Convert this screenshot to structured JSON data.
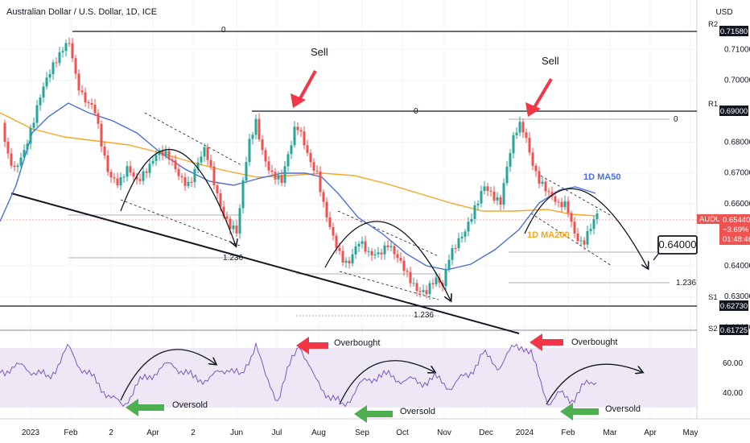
{
  "title": "Australian Dollar / U.S. Dollar, 1D, ICE",
  "currency_label": "USD",
  "chart_data": {
    "type": "candlestick",
    "symbol": "AUDUSD",
    "price_axis": {
      "min": 0.612,
      "max": 0.72,
      "ticks": [
        "0.71000",
        "0.70000",
        "0.68000",
        "0.67000",
        "0.66000",
        "0.64000",
        "0.63000",
        "0.62000"
      ]
    },
    "time_axis_labels": [
      "2023",
      "Feb",
      "2",
      "Apr",
      "2",
      "Jun",
      "Jul",
      "Aug",
      "Sep",
      "Oct",
      "Nov",
      "Dec",
      "2024",
      "Feb",
      "Mar",
      "Apr",
      "May"
    ],
    "key_levels": [
      {
        "name": "R2",
        "price": "0.71580",
        "fib_label": "0"
      },
      {
        "name": "R1",
        "price": "0.69000",
        "fib_label": "0"
      },
      {
        "name": "S1",
        "price": "0.62730"
      },
      {
        "name": "S2",
        "price": "0.61725"
      }
    ],
    "fib_extension_labels": [
      "1.236",
      "1.236",
      "1.236",
      "0"
    ],
    "moving_averages": [
      {
        "name": "1D MA50",
        "color": "#4a6fd6"
      },
      {
        "name": "1D MA200",
        "color": "#f5a623"
      }
    ],
    "current_price": {
      "symbol": "AUDUSD",
      "price": "0.65440",
      "change": "−3.69%",
      "countdown": "01:48:46"
    },
    "target": "0.64000",
    "price_annotations": [
      "Sell",
      "Sell"
    ],
    "rsi": {
      "ticks": [
        "60.00",
        "40.00"
      ],
      "annotations": [
        "Overbought",
        "Overbought",
        "Oversold",
        "Oversold",
        "Oversold"
      ]
    },
    "colors": {
      "up": "#26a69a",
      "down": "#ef5350",
      "ma50": "#4a6fd6",
      "ma200": "#f5a623",
      "rsi_line": "#7e57c2",
      "rsi_band": "#ede7f6",
      "arrow_red": "#f23645",
      "arrow_green": "#4caf50"
    }
  }
}
